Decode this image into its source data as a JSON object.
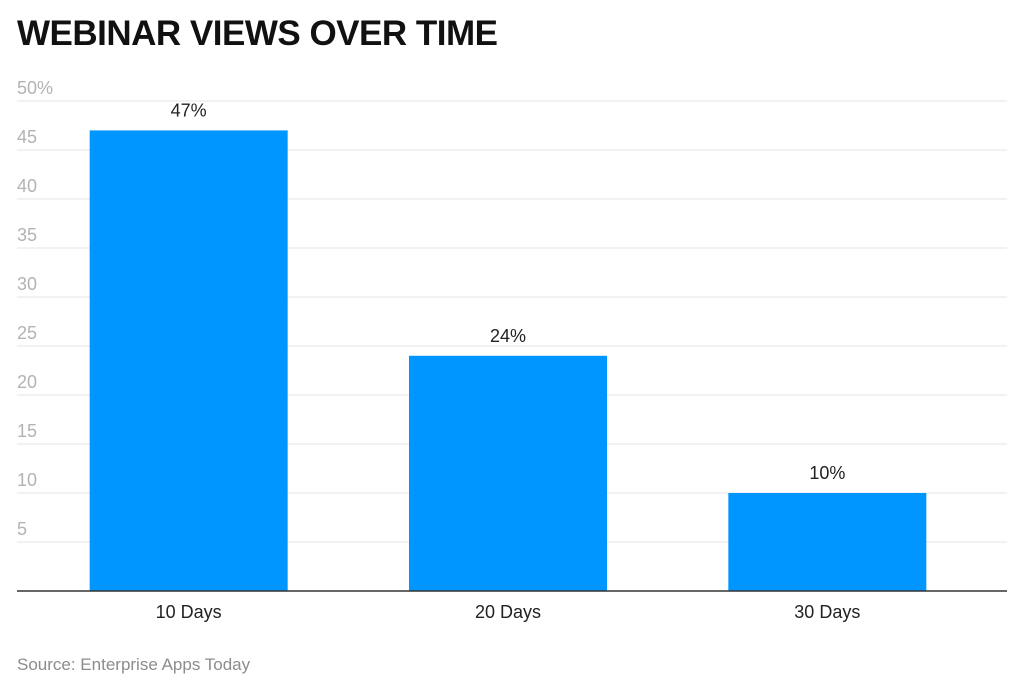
{
  "chart_data": {
    "type": "bar",
    "title": "WEBINAR VIEWS OVER TIME",
    "source": "Source: Enterprise Apps Today",
    "categories": [
      "10 Days",
      "20 Days",
      "30 Days"
    ],
    "values": [
      47,
      24,
      10
    ],
    "data_labels": [
      "47%",
      "24%",
      "10%"
    ],
    "y_ticks": [
      {
        "value": 50,
        "label": "50%"
      },
      {
        "value": 45,
        "label": "45"
      },
      {
        "value": 40,
        "label": "40"
      },
      {
        "value": 35,
        "label": "35"
      },
      {
        "value": 30,
        "label": "30"
      },
      {
        "value": 25,
        "label": "25"
      },
      {
        "value": 20,
        "label": "20"
      },
      {
        "value": 15,
        "label": "15"
      },
      {
        "value": 10,
        "label": "10"
      },
      {
        "value": 5,
        "label": "5"
      }
    ],
    "ylim": [
      0,
      50
    ],
    "grid": true,
    "xlabel": "",
    "ylabel": "",
    "bar_color": "#0096ff",
    "grid_color": "#e6e6e6",
    "axis_color": "#333333"
  }
}
